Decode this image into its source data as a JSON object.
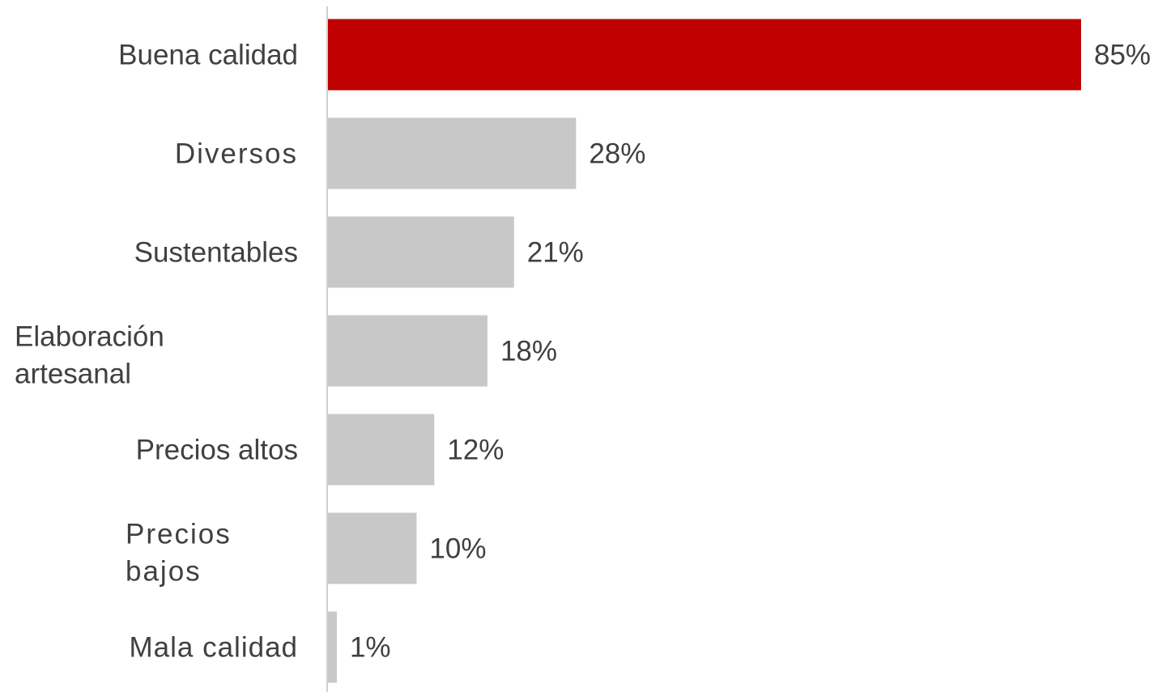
{
  "chart_data": {
    "type": "bar",
    "orientation": "horizontal",
    "categories": [
      "Buena calidad",
      "Diversos",
      "Sustentables",
      "Elaboración artesanal",
      "Precios altos",
      "Precios bajos",
      "Mala calidad"
    ],
    "values": [
      85,
      28,
      21,
      18,
      12,
      10,
      1
    ],
    "value_labels": [
      "85%",
      "28%",
      "21%",
      "18%",
      "12%",
      "10%",
      "1%"
    ],
    "xlim": [
      0,
      85
    ],
    "grid": false,
    "legend": "none",
    "highlight_index": 0,
    "colors": {
      "highlight": "#C00000",
      "default": "#C8C8C8",
      "axis": "#D0D0D0",
      "text": "#404040"
    }
  }
}
